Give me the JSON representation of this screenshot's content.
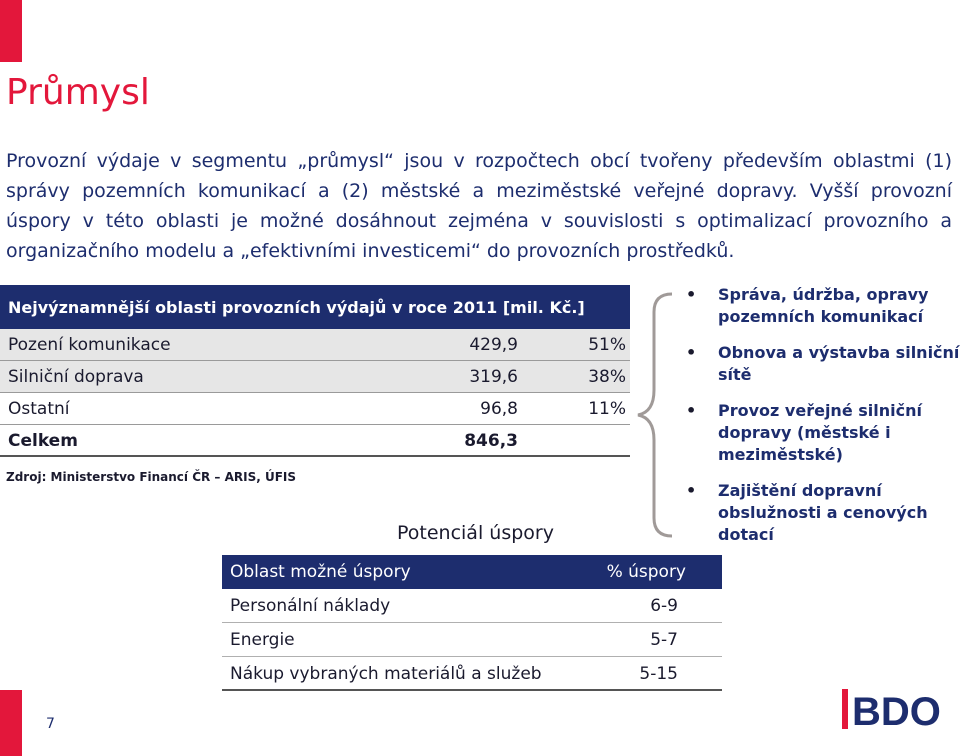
{
  "slide": {
    "title": "Průmysl",
    "intro": "Provozní výdaje v segmentu „průmysl“ jsou v rozpočtech obcí tvořeny především oblastmi (1) správy pozemních komunikací a (2) městské a meziměstské veřejné dopravy. Vyšší provozní úspory v této oblasti je možné dosáhnout zejména v souvislosti s optimalizací provozního a organizačního modelu a „efektivními investicemi“ do provozních prostředků.",
    "page_number": "7"
  },
  "expenses_table": {
    "header": "Nejvýznamnější oblasti provozních výdajů v roce 2011 [mil. Kč.]",
    "rows": [
      {
        "name": "Pození komunikace",
        "value": "429,9",
        "pct": "51%"
      },
      {
        "name": "Silniční doprava",
        "value": "319,6",
        "pct": "38%"
      },
      {
        "name": "Ostatní",
        "value": "96,8",
        "pct": "11%"
      },
      {
        "name": "Celkem",
        "value": "846,3",
        "pct": ""
      }
    ],
    "source": "Zdroj: Ministerstvo Financí ČR – ARIS, ÚFIS"
  },
  "bullets": [
    "Správa, údržba, opravy pozemních komunikací",
    "Obnova a výstavba silniční sítě",
    "Provoz veřejné silniční dopravy (městské i meziměstské)",
    "Zajištění dopravní obslužnosti a cenových dotací"
  ],
  "savings_table": {
    "title": "Potenciál úspory",
    "col_area": "Oblast možné úspory",
    "col_pct": "% úspory",
    "rows": [
      {
        "name": "Personální náklady",
        "pct": "6-9"
      },
      {
        "name": "Energie",
        "pct": "5-7"
      },
      {
        "name": "Nákup vybraných materiálů a služeb",
        "pct": "5-15"
      }
    ]
  },
  "logo": {
    "text": "BDO",
    "color": "#1d2d6e",
    "accent": "#e3173b"
  },
  "colors": {
    "accent": "#e3173b",
    "navy": "#1d2d6e"
  }
}
